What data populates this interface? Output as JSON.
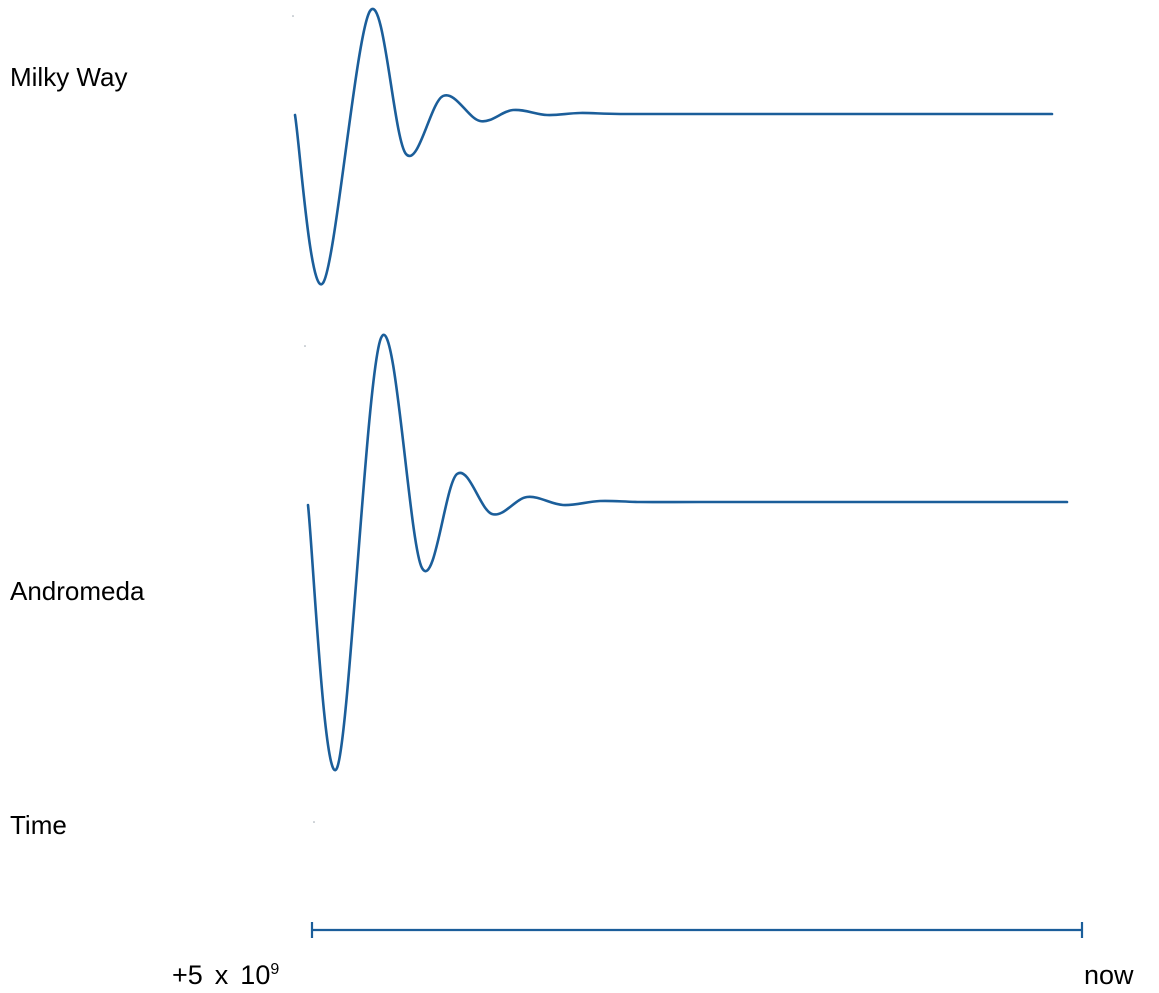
{
  "colors": {
    "curve": "#1b5e9a",
    "text": "#000000",
    "background": "#ffffff"
  },
  "rows": [
    {
      "id": "milky",
      "label": "Milky Way"
    },
    {
      "id": "andromeda",
      "label": "Andromeda"
    }
  ],
  "axis": {
    "label": "Time",
    "start_label": {
      "prefix": "+5",
      "times": "x",
      "base": "10",
      "exponent": "9"
    },
    "end_label": "now"
  }
}
